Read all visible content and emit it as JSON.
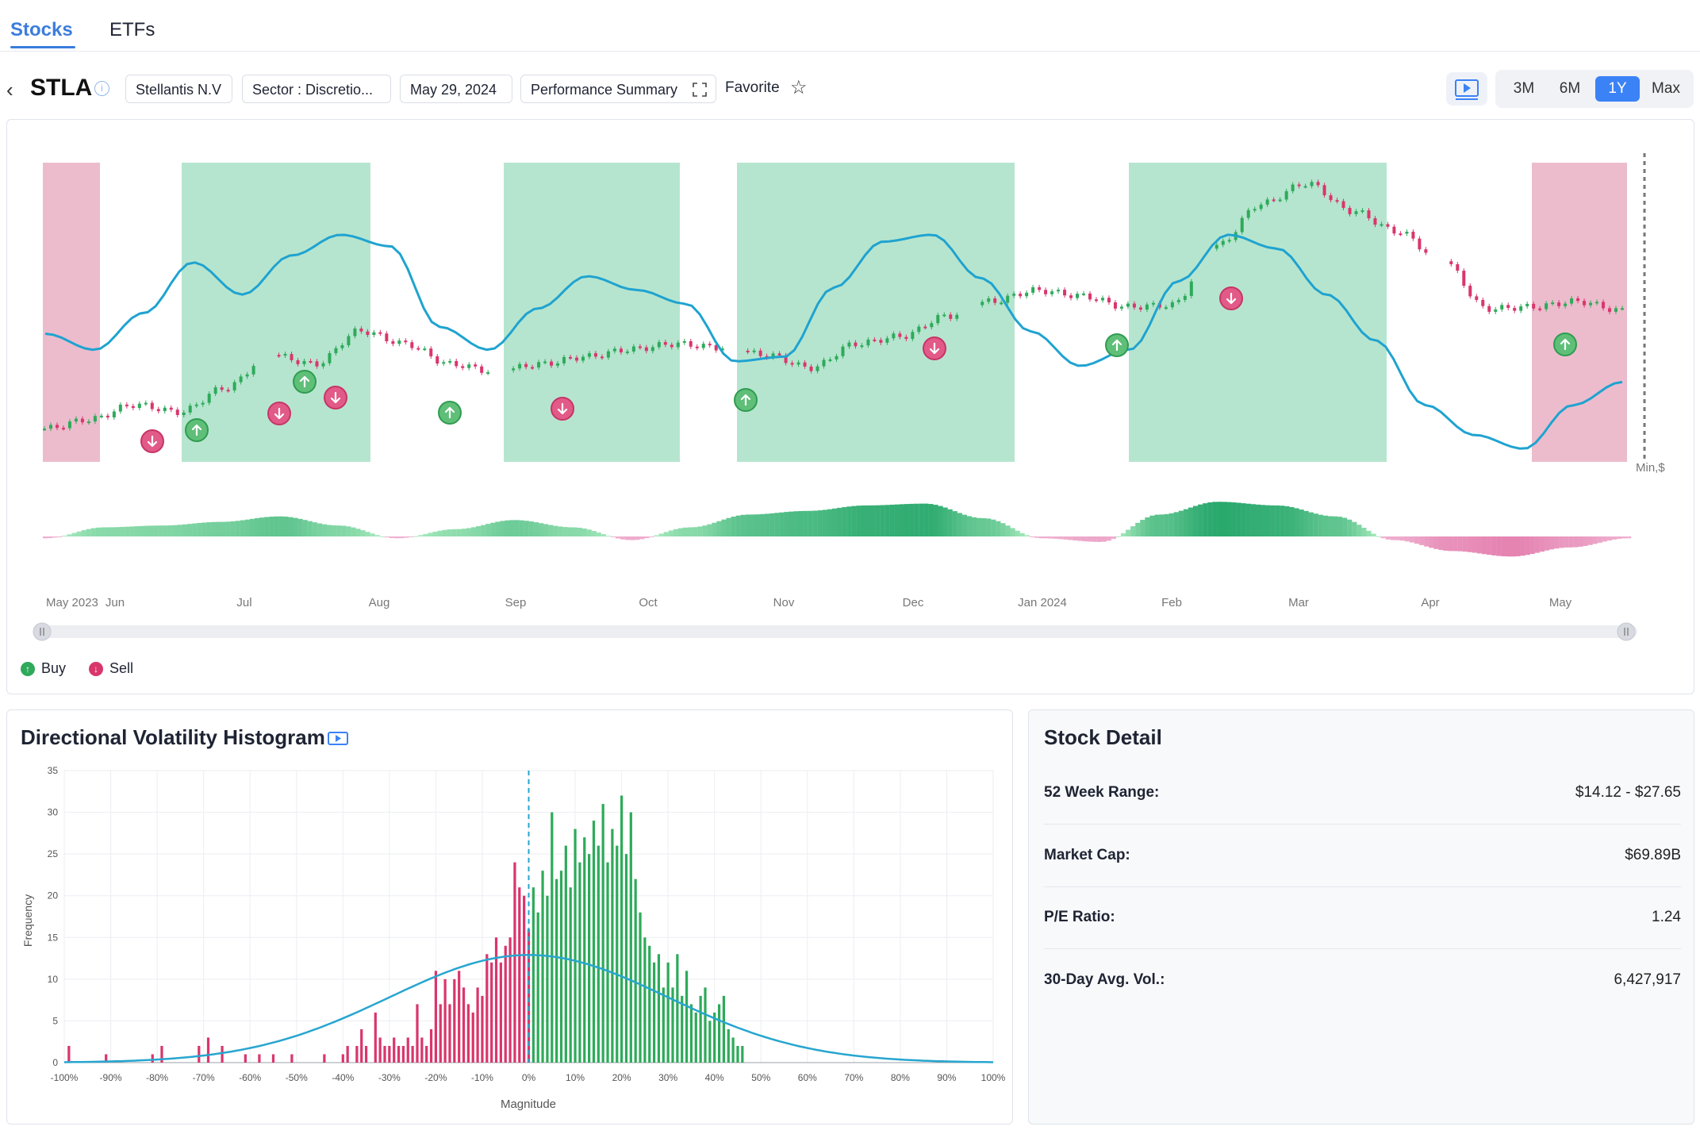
{
  "tabs": [
    {
      "label": "Stocks",
      "active": true
    },
    {
      "label": "ETFs",
      "active": false
    }
  ],
  "header": {
    "back_icon": "chevron-left-icon",
    "ticker": "STLA",
    "company": "Stellantis N.V",
    "sector": "Sector : Discretio...",
    "date": "May 29, 2024",
    "view": "Performance Summary",
    "favorite": "Favorite",
    "ranges": [
      "3M",
      "6M",
      "1Y",
      "Max"
    ],
    "active_range": "1Y"
  },
  "colors": {
    "accent": "#3b82f6",
    "buy": "#2eaa5a",
    "sell": "#d9366c",
    "green_zone": "#b6e5cf",
    "pink_zone": "#ecbccd",
    "line": "#1fa3d0"
  },
  "price_chart": {
    "y_label": "Min,$",
    "x_ticks": [
      "May 2023",
      "Jun",
      "Jul",
      "Aug",
      "Sep",
      "Oct",
      "Nov",
      "Dec",
      "Jan 2024",
      "Feb",
      "Mar",
      "Apr",
      "May"
    ],
    "legend": {
      "buy": "Buy",
      "sell": "Sell"
    }
  },
  "histogram": {
    "title": "Directional Volatility Histogram",
    "xlabel": "Magnitude",
    "ylabel": "Frequency"
  },
  "stock_detail": {
    "title": "Stock Detail",
    "rows": [
      {
        "label": "52 Week Range:",
        "value": "$14.12 - $27.65"
      },
      {
        "label": "Market Cap:",
        "value": "$69.89B"
      },
      {
        "label": "P/E Ratio:",
        "value": "1.24"
      },
      {
        "label": "30-Day Avg. Vol.:",
        "value": "6,427,917"
      }
    ]
  },
  "chart_data": [
    {
      "type": "line",
      "title": "",
      "x_ticks": [
        "May 2023",
        "Jun",
        "Jul",
        "Aug",
        "Sep",
        "Oct",
        "Nov",
        "Dec",
        "Jan 2024",
        "Feb",
        "Mar",
        "Apr",
        "May"
      ],
      "ylabel": "Min,$",
      "series": [
        {
          "kind": "price",
          "values": [
            14.3,
            14.8,
            15.6,
            15.2,
            16.5,
            18.3,
            17.8,
            19.6,
            18.9,
            17.8,
            17.4,
            17.8,
            18.2,
            18.6,
            18.9,
            18.7,
            18.3,
            17.6,
            18.9,
            19.3,
            20.4,
            21.2,
            21.8,
            21.5,
            20.9,
            21.0,
            24.2,
            26.5,
            27.6,
            26.1,
            25.0,
            23.4,
            20.8,
            20.9,
            21.2,
            20.7
          ]
        },
        {
          "kind": "smoothed_trend",
          "values": [
            0.55,
            0.48,
            0.64,
            0.86,
            0.72,
            0.89,
            0.98,
            0.93,
            0.58,
            0.48,
            0.66,
            0.8,
            0.74,
            0.68,
            0.43,
            0.45,
            0.75,
            0.95,
            0.98,
            0.79,
            0.56,
            0.41,
            0.48,
            0.78,
            0.98,
            0.92,
            0.72,
            0.52,
            0.24,
            0.11,
            0.05,
            0.24,
            0.34
          ]
        },
        {
          "kind": "volatility_oscillator",
          "values": [
            -0.05,
            0.25,
            0.3,
            0.4,
            0.55,
            0.3,
            -0.05,
            0.2,
            0.45,
            0.25,
            -0.1,
            0.25,
            0.6,
            0.7,
            0.85,
            0.9,
            0.5,
            -0.05,
            -0.15,
            0.6,
            0.95,
            0.85,
            0.55,
            -0.1,
            -0.4,
            -0.55,
            -0.3,
            -0.05
          ]
        }
      ],
      "regions": [
        {
          "from": "May 2023",
          "to": "late May 2023",
          "signal": "sell"
        },
        {
          "from": "mid Jun",
          "to": "late Jul",
          "signal": "buy"
        },
        {
          "from": "mid Aug",
          "to": "late Sep",
          "signal": "buy"
        },
        {
          "from": "mid Oct",
          "to": "late Dec",
          "signal": "buy"
        },
        {
          "from": "late Jan 2024",
          "to": "late Mar",
          "signal": "buy"
        },
        {
          "from": "late Apr",
          "to": "end of May",
          "signal": "sell"
        }
      ],
      "signals": [
        {
          "x": "Jun",
          "type": "sell"
        },
        {
          "x": "Jun",
          "type": "buy"
        },
        {
          "x": "Jul",
          "type": "sell"
        },
        {
          "x": "Jul",
          "type": "buy"
        },
        {
          "x": "Jul",
          "type": "sell"
        },
        {
          "x": "Aug",
          "type": "buy"
        },
        {
          "x": "Sep",
          "type": "sell"
        },
        {
          "x": "Oct",
          "type": "buy"
        },
        {
          "x": "Dec",
          "type": "sell"
        },
        {
          "x": "Jan 2024",
          "type": "buy"
        },
        {
          "x": "Feb",
          "type": "sell"
        },
        {
          "x": "May",
          "type": "buy"
        }
      ]
    },
    {
      "type": "bar",
      "title": "Directional Volatility Histogram",
      "xlabel": "Magnitude",
      "ylabel": "Frequency",
      "xlim": [
        -100,
        100
      ],
      "ylim": [
        0,
        35
      ],
      "x_ticks": [
        "-100%",
        "-90%",
        "-80%",
        "-70%",
        "-60%",
        "-50%",
        "-40%",
        "-30%",
        "-20%",
        "-10%",
        "0%",
        "10%",
        "20%",
        "30%",
        "40%",
        "50%",
        "60%",
        "70%",
        "80%",
        "90%",
        "100%"
      ],
      "y_ticks": [
        0,
        5,
        10,
        15,
        20,
        25,
        30,
        35
      ],
      "negative_bins": [
        {
          "x": -99,
          "v": 2
        },
        {
          "x": -91,
          "v": 1
        },
        {
          "x": -81,
          "v": 1
        },
        {
          "x": -79,
          "v": 2
        },
        {
          "x": -71,
          "v": 2
        },
        {
          "x": -69,
          "v": 3
        },
        {
          "x": -66,
          "v": 2
        },
        {
          "x": -61,
          "v": 1
        },
        {
          "x": -58,
          "v": 1
        },
        {
          "x": -55,
          "v": 1
        },
        {
          "x": -51,
          "v": 1
        },
        {
          "x": -44,
          "v": 1
        },
        {
          "x": -40,
          "v": 1
        },
        {
          "x": -39,
          "v": 2
        },
        {
          "x": -37,
          "v": 2
        },
        {
          "x": -36,
          "v": 4
        },
        {
          "x": -35,
          "v": 2
        },
        {
          "x": -33,
          "v": 6
        },
        {
          "x": -32,
          "v": 3
        },
        {
          "x": -31,
          "v": 2
        },
        {
          "x": -30,
          "v": 2
        },
        {
          "x": -29,
          "v": 3
        },
        {
          "x": -28,
          "v": 2
        },
        {
          "x": -27,
          "v": 2
        },
        {
          "x": -26,
          "v": 3
        },
        {
          "x": -25,
          "v": 2
        },
        {
          "x": -24,
          "v": 7
        },
        {
          "x": -23,
          "v": 3
        },
        {
          "x": -22,
          "v": 2
        },
        {
          "x": -21,
          "v": 4
        },
        {
          "x": -20,
          "v": 11
        },
        {
          "x": -19,
          "v": 7
        },
        {
          "x": -18,
          "v": 10
        },
        {
          "x": -17,
          "v": 7
        },
        {
          "x": -16,
          "v": 10
        },
        {
          "x": -15,
          "v": 11
        },
        {
          "x": -14,
          "v": 9
        },
        {
          "x": -13,
          "v": 7
        },
        {
          "x": -12,
          "v": 6
        },
        {
          "x": -11,
          "v": 9
        },
        {
          "x": -10,
          "v": 8
        },
        {
          "x": -9,
          "v": 13
        },
        {
          "x": -8,
          "v": 12
        },
        {
          "x": -7,
          "v": 15
        },
        {
          "x": -6,
          "v": 12
        },
        {
          "x": -5,
          "v": 14
        },
        {
          "x": -4,
          "v": 15
        },
        {
          "x": -3,
          "v": 24
        },
        {
          "x": -2,
          "v": 21
        },
        {
          "x": -1,
          "v": 20
        },
        {
          "x": 0,
          "v": 16
        }
      ],
      "positive_bins": [
        {
          "x": 1,
          "v": 21
        },
        {
          "x": 2,
          "v": 18
        },
        {
          "x": 3,
          "v": 23
        },
        {
          "x": 4,
          "v": 20
        },
        {
          "x": 5,
          "v": 30
        },
        {
          "x": 6,
          "v": 22
        },
        {
          "x": 7,
          "v": 23
        },
        {
          "x": 8,
          "v": 26
        },
        {
          "x": 9,
          "v": 21
        },
        {
          "x": 10,
          "v": 28
        },
        {
          "x": 11,
          "v": 24
        },
        {
          "x": 12,
          "v": 27
        },
        {
          "x": 13,
          "v": 25
        },
        {
          "x": 14,
          "v": 29
        },
        {
          "x": 15,
          "v": 26
        },
        {
          "x": 16,
          "v": 31
        },
        {
          "x": 17,
          "v": 24
        },
        {
          "x": 18,
          "v": 28
        },
        {
          "x": 19,
          "v": 26
        },
        {
          "x": 20,
          "v": 32
        },
        {
          "x": 21,
          "v": 25
        },
        {
          "x": 22,
          "v": 30
        },
        {
          "x": 23,
          "v": 22
        },
        {
          "x": 24,
          "v": 18
        },
        {
          "x": 25,
          "v": 15
        },
        {
          "x": 26,
          "v": 14
        },
        {
          "x": 27,
          "v": 12
        },
        {
          "x": 28,
          "v": 13
        },
        {
          "x": 29,
          "v": 9
        },
        {
          "x": 30,
          "v": 12
        },
        {
          "x": 31,
          "v": 9
        },
        {
          "x": 32,
          "v": 13
        },
        {
          "x": 33,
          "v": 8
        },
        {
          "x": 34,
          "v": 11
        },
        {
          "x": 35,
          "v": 7
        },
        {
          "x": 36,
          "v": 6
        },
        {
          "x": 37,
          "v": 8
        },
        {
          "x": 38,
          "v": 9
        },
        {
          "x": 39,
          "v": 5
        },
        {
          "x": 40,
          "v": 6
        },
        {
          "x": 41,
          "v": 7
        },
        {
          "x": 42,
          "v": 8
        },
        {
          "x": 43,
          "v": 4
        },
        {
          "x": 44,
          "v": 3
        },
        {
          "x": 45,
          "v": 2
        },
        {
          "x": 46,
          "v": 2
        }
      ],
      "normal_fit": {
        "mean": 0,
        "std": 30,
        "peak": 12.9
      }
    }
  ]
}
